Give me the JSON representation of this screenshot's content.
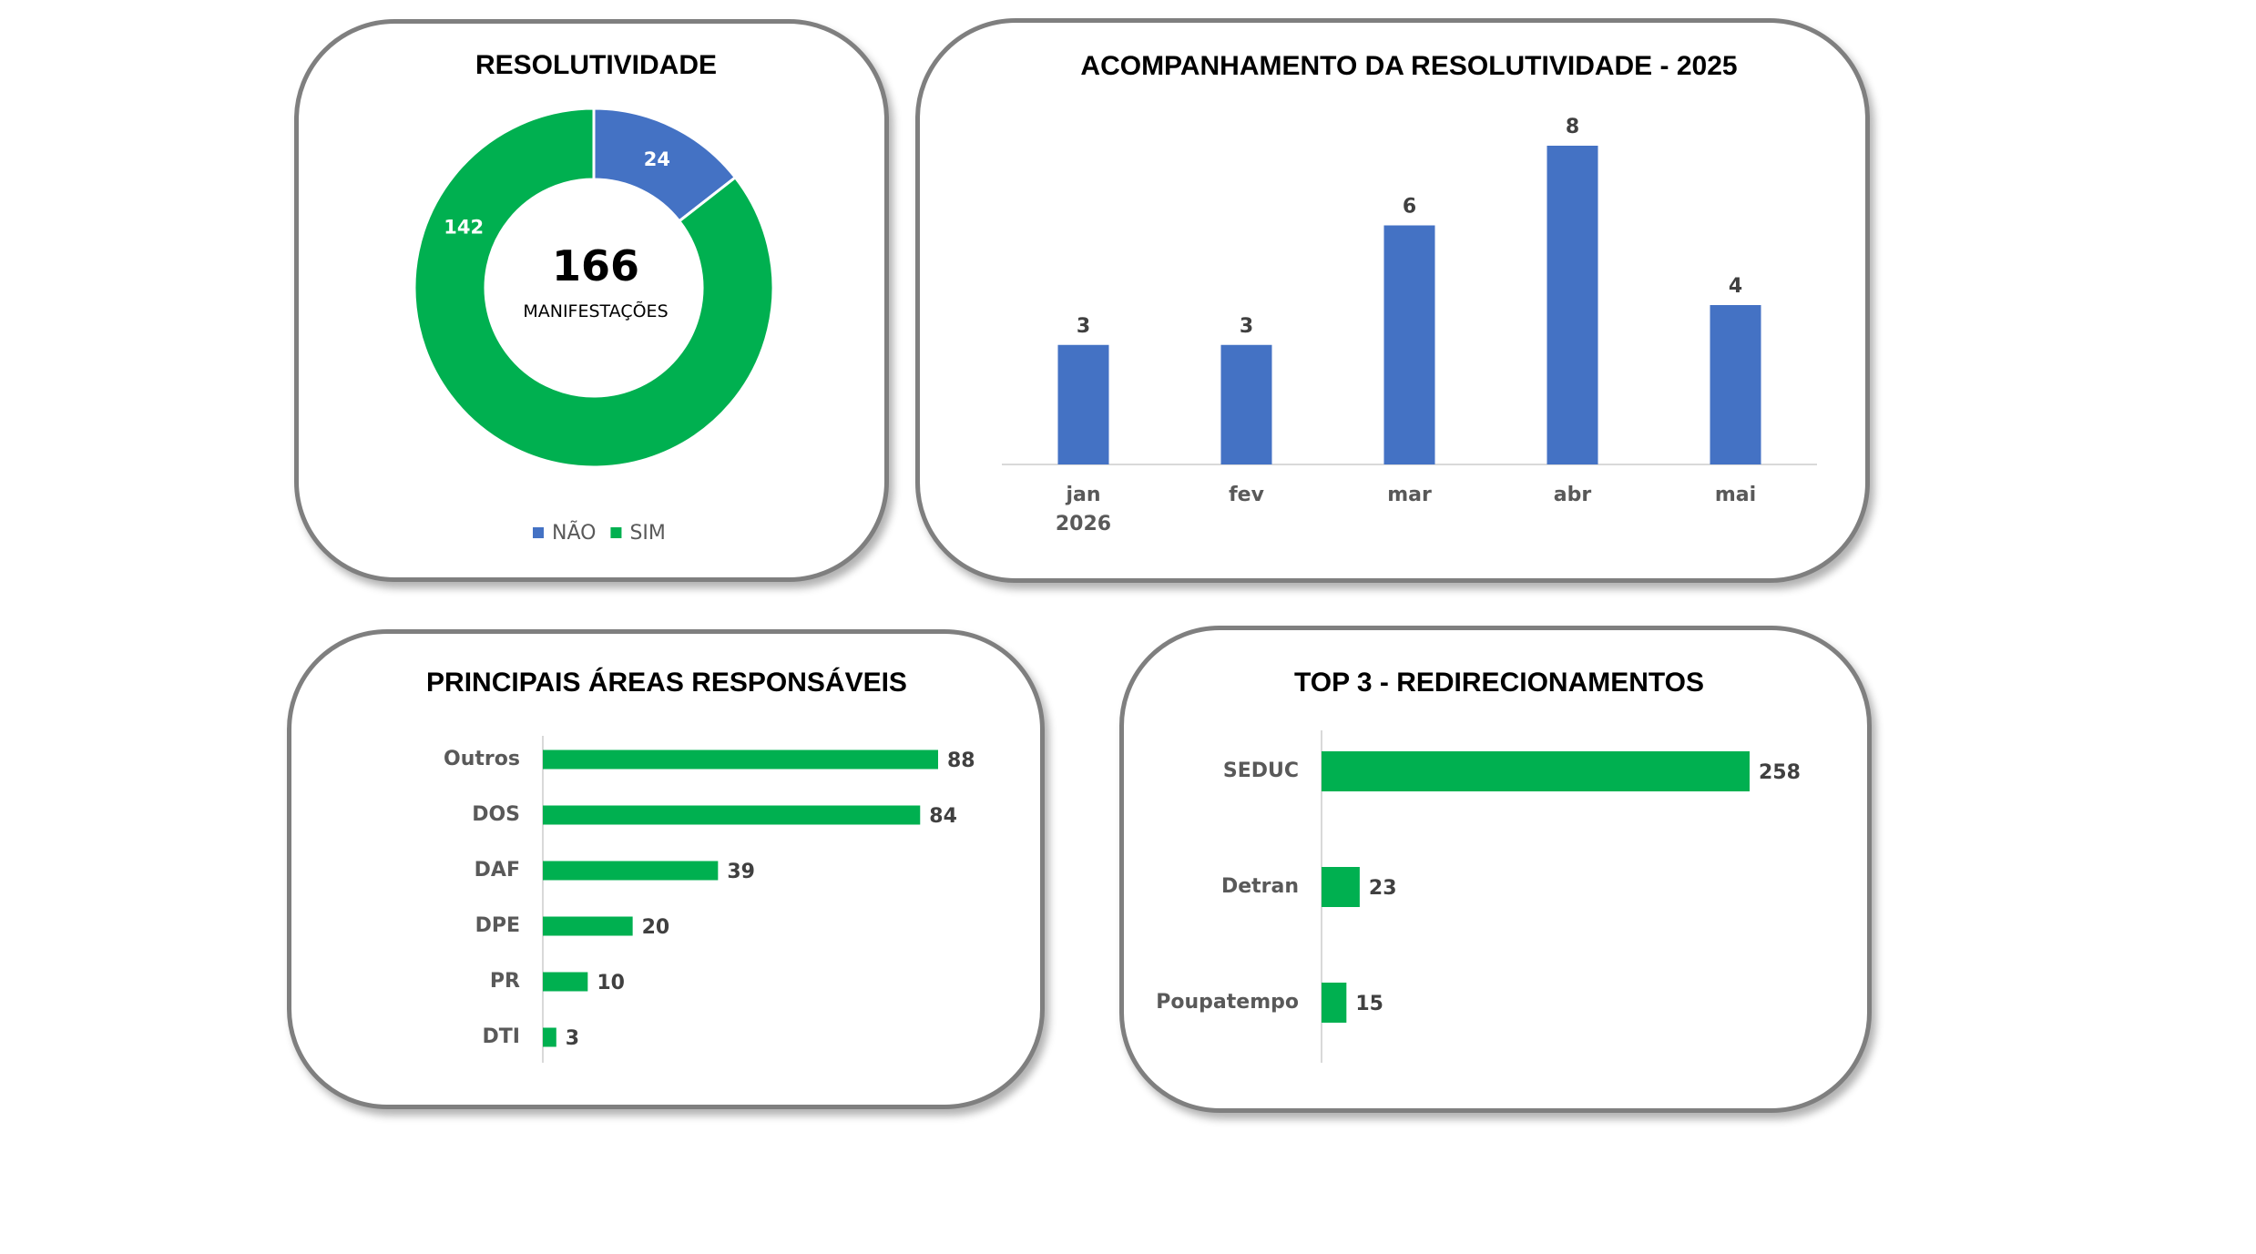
{
  "colors": {
    "blue": "#4472c4",
    "green": "#00b050",
    "axis": "#d9d9d9",
    "panel_border": "#7f7f7f"
  },
  "chart_data": [
    {
      "id": "resolutividade",
      "type": "pie",
      "variant": "donut",
      "title": "RESOLUTIVIDADE",
      "center_value": "166",
      "center_label": "MANIFESTAÇÕES",
      "slices": [
        {
          "label": "NÃO",
          "value": 24,
          "color": "#4472c4"
        },
        {
          "label": "SIM",
          "value": 142,
          "color": "#00b050"
        }
      ],
      "legend": {
        "position": "bottom",
        "entries": [
          "NÃO",
          "SIM"
        ]
      }
    },
    {
      "id": "acompanhamento",
      "type": "bar",
      "orientation": "vertical",
      "title": "ACOMPANHAMENTO DA RESOLUTIVIDADE - 2025",
      "categories": [
        {
          "label": "jan",
          "sublabel": "2026"
        },
        {
          "label": "fev",
          "sublabel": ""
        },
        {
          "label": "mar",
          "sublabel": ""
        },
        {
          "label": "abr",
          "sublabel": ""
        },
        {
          "label": "mai",
          "sublabel": ""
        }
      ],
      "values": [
        3,
        3,
        6,
        8,
        4
      ],
      "ylim": [
        0,
        8
      ],
      "color": "#4472c4",
      "grid": false
    },
    {
      "id": "principais_areas",
      "type": "bar",
      "orientation": "horizontal",
      "title": "PRINCIPAIS ÁREAS RESPONSÁVEIS",
      "categories": [
        "Outros",
        "DOS",
        "DAF",
        "DPE",
        "PR",
        "DTI"
      ],
      "values": [
        88,
        84,
        39,
        20,
        10,
        3
      ],
      "xlim": [
        0,
        88
      ],
      "color": "#00b050",
      "grid": false
    },
    {
      "id": "top3_redirecionamentos",
      "type": "bar",
      "orientation": "horizontal",
      "title": "TOP 3 - REDIRECIONAMENTOS",
      "categories": [
        "SEDUC",
        "Detran",
        "Poupatempo"
      ],
      "values": [
        258,
        23,
        15
      ],
      "xlim": [
        0,
        258
      ],
      "color": "#00b050",
      "grid": false
    }
  ]
}
